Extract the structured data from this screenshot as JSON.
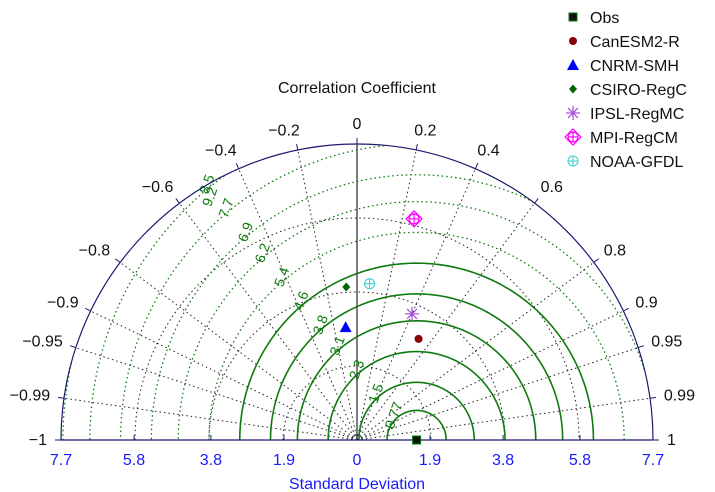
{
  "chart_data": {
    "type": "taylor",
    "title": "Correlation Coefficient",
    "xlabel": "Standard Deviation",
    "std_range": [
      -7.7,
      7.7
    ],
    "std_ticks": [
      -7.7,
      -5.8,
      -3.8,
      -1.9,
      0,
      1.9,
      3.8,
      5.8,
      7.7
    ],
    "std_tick_labels": [
      "7.7",
      "5.8",
      "3.8",
      "1.9",
      "0",
      "1.9",
      "3.8",
      "5.8",
      "7.7"
    ],
    "correlation_ticks": [
      -1,
      -0.99,
      -0.95,
      -0.9,
      -0.8,
      -0.6,
      -0.4,
      -0.2,
      0,
      0.2,
      0.4,
      0.6,
      0.8,
      0.9,
      0.95,
      0.99,
      1
    ],
    "correlation_tick_labels": [
      "−1",
      "−0.99",
      "−0.95",
      "−0.9",
      "−0.8",
      "−0.6",
      "−0.4",
      "−0.2",
      "0",
      "0.2",
      "0.4",
      "0.6",
      "0.8",
      "0.9",
      "0.95",
      "0.99",
      "1"
    ],
    "std_gridlines": [
      1.925,
      3.85,
      5.775
    ],
    "rms_contours": [
      0.77,
      1.5,
      2.3,
      3.1,
      3.8,
      4.6,
      5.4,
      6.2,
      6.9,
      7.7,
      8.5,
      9.2
    ],
    "rms_contour_labels": [
      "0.77",
      "1.5",
      "2.3",
      "3.1",
      "3.8",
      "4.6",
      "5.4",
      "6.2",
      "6.9",
      "7.7",
      "8.5",
      "9.2"
    ],
    "reference_std": 1.55,
    "series": [
      {
        "name": "Obs",
        "std": 1.55,
        "corr": 1.0,
        "marker": "square",
        "color": "#111111"
      },
      {
        "name": "CanESM2-R",
        "std": 3.08,
        "corr": 0.52,
        "marker": "circle",
        "color": "#8b0000"
      },
      {
        "name": "CNRM-SMH",
        "std": 2.95,
        "corr": -0.1,
        "marker": "triangle",
        "color": "#0000ff"
      },
      {
        "name": "CSIRO-RegC",
        "std": 3.99,
        "corr": -0.07,
        "marker": "diamond",
        "color": "#006400"
      },
      {
        "name": "IPSL-RegMC",
        "std": 3.58,
        "corr": 0.4,
        "marker": "asterisk",
        "color": "#a64dd9"
      },
      {
        "name": "MPI-RegCM",
        "std": 5.94,
        "corr": 0.25,
        "marker": "circled-plus-diamond",
        "color": "#ff00ff"
      },
      {
        "name": "NOAA-GFDL",
        "std": 4.08,
        "corr": 0.08,
        "marker": "circled-plus",
        "color": "#40d0d0"
      }
    ],
    "legend_position": "top-right"
  }
}
